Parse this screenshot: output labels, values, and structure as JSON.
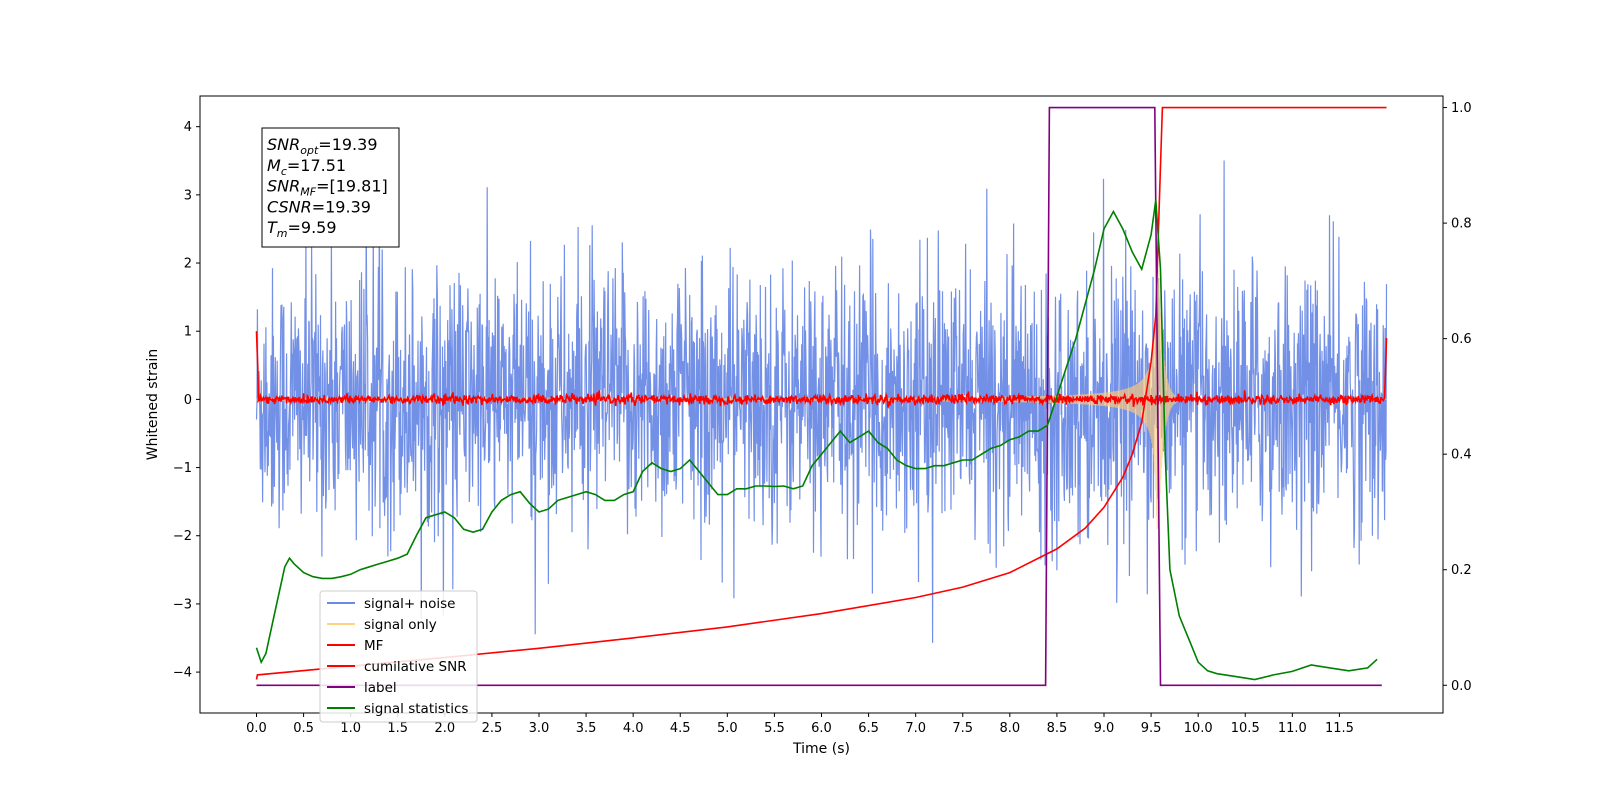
{
  "chart_data": {
    "type": "line",
    "xlabel": "Time (s)",
    "ylabel_left": "Whitened strain",
    "ylabel_right": "",
    "xlim": [
      -0.6,
      12.6
    ],
    "ylim_left": [
      -4.6,
      4.45
    ],
    "ylim_right": [
      -0.048,
      1.02
    ],
    "x_ticks": [
      0.0,
      0.5,
      1.0,
      1.5,
      2.0,
      2.5,
      3.0,
      3.5,
      4.0,
      4.5,
      5.0,
      5.5,
      6.0,
      6.5,
      7.0,
      7.5,
      8.0,
      8.5,
      9.0,
      9.5,
      10.0,
      10.5,
      11.0,
      11.5
    ],
    "x_tick_labels": [
      "0.0",
      "0.5",
      "1.0",
      "1.5",
      "2.0",
      "2.5",
      "3.0",
      "3.5",
      "4.0",
      "4.5",
      "5.0",
      "5.5",
      "6.0",
      "6.5",
      "7.0",
      "7.5",
      "8.0",
      "8.5",
      "9.0",
      "9.5",
      "10.0",
      "10.5",
      "11.0",
      "11.5"
    ],
    "y_left_ticks": [
      -4,
      -3,
      -2,
      -1,
      0,
      1,
      2,
      3,
      4
    ],
    "y_left_tick_labels": [
      "−4",
      "−3",
      "−2",
      "−1",
      "0",
      "1",
      "2",
      "3",
      "4"
    ],
    "y_right_ticks": [
      0.0,
      0.2,
      0.4,
      0.6,
      0.8,
      1.0
    ],
    "y_right_tick_labels": [
      "0.0",
      "0.2",
      "0.4",
      "0.6",
      "0.8",
      "1.0"
    ],
    "grid": false,
    "legend_position": "lower-left",
    "legend": [
      {
        "label": "signal+ noise",
        "color": "#6b8ae6"
      },
      {
        "label": "signal only",
        "color": "#ffd27f"
      },
      {
        "label": "MF",
        "color": "#ff0000"
      },
      {
        "label": "cumilative SNR",
        "color": "#ff0000"
      },
      {
        "label": "label",
        "color": "#800080"
      },
      {
        "label": "signal statistics",
        "color": "#008000"
      }
    ],
    "annotation_box": {
      "lines": [
        {
          "main": "SNR",
          "sub": "opt",
          "rest": "=19.39"
        },
        {
          "main": "M",
          "sub": "c",
          "rest": "=17.51"
        },
        {
          "main": "SNR",
          "sub": "MF",
          "rest": "=[19.81]"
        },
        {
          "main": "CSNR",
          "sub": "",
          "rest": "=19.39"
        },
        {
          "main": "T",
          "sub": "m",
          "rest": "=9.59"
        }
      ]
    },
    "series": [
      {
        "name": "signal+ noise",
        "axis": "left",
        "color": "#6b8ae6",
        "description": "whitened noise plus signal, spans roughly -2.5 to 2.5 with spikes to about ±3.6, x from 0 to 12",
        "x_range": [
          0.0,
          12.0
        ]
      },
      {
        "name": "signal only",
        "axis": "left",
        "color": "#ffd27f",
        "description": "chirp whose amplitude grows to about 1.9 near x=9.58 and then rings down",
        "x_range": [
          0.0,
          12.0
        ],
        "merger_time": 9.58,
        "peak_amplitude": 1.9
      },
      {
        "name": "MF",
        "axis": "left",
        "color": "#ff0000",
        "description": "matched filter output near zero with small noise, spikes to 1.0 at x=0 and 0.9 at x=12",
        "x_range": [
          0.0,
          12.0
        ]
      },
      {
        "name": "cumilative SNR",
        "axis": "right",
        "color": "#ff0000",
        "x": [
          0.0,
          0.01,
          1.0,
          2.0,
          3.0,
          4.0,
          5.0,
          6.0,
          7.0,
          7.5,
          8.0,
          8.5,
          8.8,
          9.0,
          9.2,
          9.3,
          9.4,
          9.5,
          9.55,
          9.6,
          9.62,
          12.0
        ],
        "values": [
          0.01,
          0.018,
          0.033,
          0.048,
          0.064,
          0.082,
          0.101,
          0.124,
          0.152,
          0.17,
          0.195,
          0.236,
          0.272,
          0.308,
          0.36,
          0.4,
          0.455,
          0.56,
          0.64,
          0.9,
          1.0,
          1.0
        ]
      },
      {
        "name": "label",
        "axis": "right",
        "color": "#800080",
        "x": [
          0.0,
          8.38,
          8.42,
          9.54,
          9.6,
          11.95
        ],
        "values": [
          0.0,
          0.0,
          1.0,
          1.0,
          0.0,
          0.0
        ]
      },
      {
        "name": "signal statistics",
        "axis": "right",
        "color": "#008000",
        "x": [
          0.0,
          0.05,
          0.1,
          0.2,
          0.3,
          0.35,
          0.4,
          0.5,
          0.6,
          0.7,
          0.8,
          0.9,
          1.0,
          1.1,
          1.2,
          1.3,
          1.4,
          1.5,
          1.6,
          1.7,
          1.8,
          1.9,
          2.0,
          2.1,
          2.2,
          2.3,
          2.4,
          2.5,
          2.6,
          2.7,
          2.8,
          2.9,
          3.0,
          3.1,
          3.2,
          3.3,
          3.4,
          3.5,
          3.6,
          3.7,
          3.8,
          3.9,
          4.0,
          4.1,
          4.2,
          4.3,
          4.4,
          4.5,
          4.6,
          4.7,
          4.8,
          4.9,
          5.0,
          5.1,
          5.2,
          5.3,
          5.4,
          5.5,
          5.6,
          5.7,
          5.8,
          5.9,
          6.0,
          6.1,
          6.2,
          6.3,
          6.4,
          6.5,
          6.6,
          6.7,
          6.8,
          6.9,
          7.0,
          7.1,
          7.2,
          7.3,
          7.4,
          7.5,
          7.6,
          7.7,
          7.8,
          7.9,
          8.0,
          8.1,
          8.2,
          8.3,
          8.4,
          8.5,
          8.6,
          8.7,
          8.8,
          8.9,
          9.0,
          9.1,
          9.2,
          9.3,
          9.4,
          9.5,
          9.55,
          9.6,
          9.65,
          9.7,
          9.8,
          9.9,
          10.0,
          10.1,
          10.2,
          10.4,
          10.6,
          10.8,
          11.0,
          11.2,
          11.4,
          11.6,
          11.8,
          11.9
        ],
        "values": [
          0.065,
          0.04,
          0.055,
          0.13,
          0.205,
          0.22,
          0.21,
          0.195,
          0.188,
          0.185,
          0.185,
          0.188,
          0.192,
          0.2,
          0.205,
          0.21,
          0.215,
          0.22,
          0.227,
          0.26,
          0.29,
          0.295,
          0.3,
          0.29,
          0.27,
          0.265,
          0.27,
          0.3,
          0.32,
          0.33,
          0.335,
          0.315,
          0.3,
          0.305,
          0.32,
          0.325,
          0.33,
          0.335,
          0.33,
          0.32,
          0.32,
          0.33,
          0.335,
          0.37,
          0.385,
          0.375,
          0.37,
          0.375,
          0.39,
          0.37,
          0.35,
          0.33,
          0.33,
          0.34,
          0.34,
          0.345,
          0.345,
          0.344,
          0.345,
          0.34,
          0.345,
          0.38,
          0.4,
          0.42,
          0.44,
          0.42,
          0.43,
          0.44,
          0.42,
          0.41,
          0.39,
          0.38,
          0.375,
          0.375,
          0.38,
          0.38,
          0.385,
          0.39,
          0.39,
          0.4,
          0.41,
          0.415,
          0.425,
          0.43,
          0.44,
          0.44,
          0.45,
          0.5,
          0.55,
          0.6,
          0.66,
          0.72,
          0.79,
          0.82,
          0.79,
          0.75,
          0.72,
          0.78,
          0.84,
          0.72,
          0.4,
          0.2,
          0.12,
          0.08,
          0.04,
          0.025,
          0.02,
          0.015,
          0.01,
          0.018,
          0.024,
          0.035,
          0.03,
          0.025,
          0.03,
          0.045
        ]
      }
    ]
  }
}
